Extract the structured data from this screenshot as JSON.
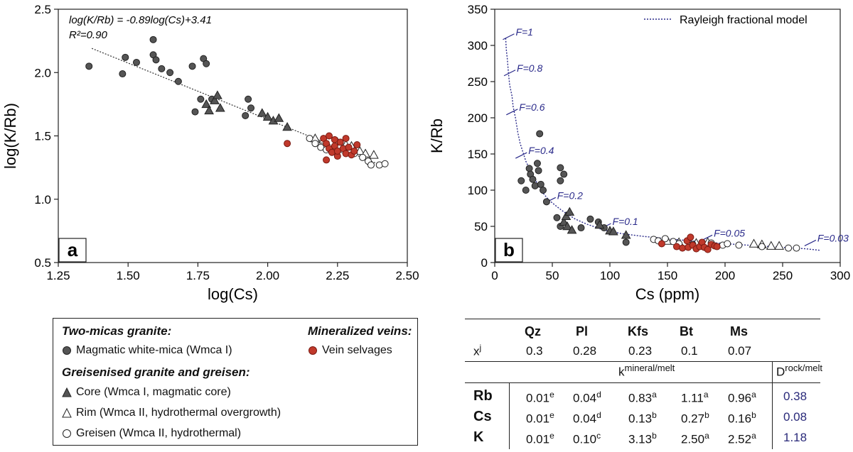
{
  "chart_data": [
    {
      "type": "scatter",
      "panel_label": "a",
      "xlabel": "log(Cs)",
      "ylabel": "log(K/Rb)",
      "xlim": [
        1.25,
        2.5
      ],
      "ylim": [
        0.5,
        2.5
      ],
      "xticks": [
        "1.25",
        "1.50",
        "1.75",
        "2.00",
        "2.25",
        "2.50"
      ],
      "yticks": [
        "0.5",
        "1.0",
        "1.5",
        "2.0",
        "2.5"
      ],
      "equation": "log(K/Rb) = -0.89log(Cs)+3.41",
      "r2_label": "R²=0.90",
      "trendline": {
        "slope": -0.89,
        "intercept": 3.41,
        "x_range": [
          1.37,
          2.4
        ]
      },
      "series": [
        {
          "name": "Magmatic white-mica (Wmca I)",
          "marker": "circle",
          "color": "#555555",
          "points": [
            [
              1.36,
              2.05
            ],
            [
              1.48,
              1.99
            ],
            [
              1.49,
              2.12
            ],
            [
              1.53,
              2.08
            ],
            [
              1.59,
              2.26
            ],
            [
              1.59,
              2.14
            ],
            [
              1.6,
              2.1
            ],
            [
              1.62,
              2.03
            ],
            [
              1.65,
              2.0
            ],
            [
              1.68,
              1.93
            ],
            [
              1.73,
              2.05
            ],
            [
              1.77,
              2.11
            ],
            [
              1.78,
              2.07
            ],
            [
              1.74,
              1.69
            ],
            [
              1.76,
              1.79
            ],
            [
              1.8,
              1.79
            ],
            [
              1.93,
              1.79
            ],
            [
              1.94,
              1.72
            ],
            [
              1.92,
              1.66
            ]
          ]
        },
        {
          "name": "Core (Wmca I, magmatic core)",
          "marker": "triangle",
          "color": "#555555",
          "points": [
            [
              1.78,
              1.75
            ],
            [
              1.79,
              1.7
            ],
            [
              1.81,
              1.78
            ],
            [
              1.82,
              1.82
            ],
            [
              1.83,
              1.72
            ],
            [
              1.98,
              1.68
            ],
            [
              2.0,
              1.65
            ],
            [
              2.02,
              1.62
            ],
            [
              2.04,
              1.64
            ],
            [
              2.07,
              1.57
            ]
          ]
        },
        {
          "name": "Rim (Wmca II, hydrothermal overgrowth)",
          "marker": "triangle-open",
          "color": "#ffffff",
          "points": [
            [
              2.17,
              1.48
            ],
            [
              2.2,
              1.47
            ],
            [
              2.25,
              1.45
            ],
            [
              2.28,
              1.43
            ],
            [
              2.3,
              1.42
            ],
            [
              2.33,
              1.38
            ],
            [
              2.35,
              1.36
            ],
            [
              2.38,
              1.35
            ]
          ]
        },
        {
          "name": "Greisen (Wmca II, hydrothermal)",
          "marker": "circle-open",
          "color": "#ffffff",
          "points": [
            [
              2.15,
              1.48
            ],
            [
              2.17,
              1.44
            ],
            [
              2.19,
              1.41
            ],
            [
              2.21,
              1.39
            ],
            [
              2.26,
              1.41
            ],
            [
              2.27,
              1.39
            ],
            [
              2.29,
              1.37
            ],
            [
              2.31,
              1.36
            ],
            [
              2.34,
              1.33
            ],
            [
              2.36,
              1.3
            ],
            [
              2.37,
              1.27
            ],
            [
              2.4,
              1.27
            ],
            [
              2.42,
              1.28
            ]
          ]
        },
        {
          "name": "Vein selvages",
          "marker": "circle",
          "color": "#c0392b",
          "points": [
            [
              2.07,
              1.44
            ],
            [
              2.2,
              1.48
            ],
            [
              2.21,
              1.44
            ],
            [
              2.22,
              1.5
            ],
            [
              2.22,
              1.4
            ],
            [
              2.23,
              1.37
            ],
            [
              2.24,
              1.47
            ],
            [
              2.24,
              1.42
            ],
            [
              2.25,
              1.34
            ],
            [
              2.26,
              1.45
            ],
            [
              2.27,
              1.4
            ],
            [
              2.28,
              1.36
            ],
            [
              2.28,
              1.48
            ],
            [
              2.29,
              1.41
            ],
            [
              2.3,
              1.35
            ],
            [
              2.31,
              1.38
            ],
            [
              2.32,
              1.43
            ],
            [
              2.21,
              1.31
            ],
            [
              2.25,
              1.38
            ]
          ]
        }
      ]
    },
    {
      "type": "scatter",
      "panel_label": "b",
      "xlabel": "Cs (ppm)",
      "ylabel": "K/Rb",
      "xlim": [
        0,
        300
      ],
      "ylim": [
        0,
        350
      ],
      "xticks": [
        "0",
        "50",
        "100",
        "150",
        "200",
        "250",
        "300"
      ],
      "yticks": [
        "0",
        "50",
        "100",
        "150",
        "200",
        "250",
        "300",
        "350"
      ],
      "model_legend": "Rayleigh fractional model",
      "model_curve": [
        [
          9.5,
          310
        ],
        [
          10,
          295
        ],
        [
          11,
          280
        ],
        [
          12,
          260
        ],
        [
          13,
          245
        ],
        [
          15,
          230
        ],
        [
          16,
          215
        ],
        [
          18,
          200
        ],
        [
          20,
          180
        ],
        [
          22,
          165
        ],
        [
          25,
          150
        ],
        [
          27,
          140
        ],
        [
          30,
          130
        ],
        [
          35,
          115
        ],
        [
          40,
          100
        ],
        [
          45,
          90
        ],
        [
          48,
          85
        ],
        [
          55,
          76
        ],
        [
          60,
          70
        ],
        [
          70,
          60
        ],
        [
          80,
          53
        ],
        [
          95,
          45
        ],
        [
          110,
          40
        ],
        [
          130,
          36
        ],
        [
          150,
          33
        ],
        [
          170,
          30
        ],
        [
          185,
          28
        ],
        [
          210,
          25
        ],
        [
          240,
          22
        ],
        [
          270,
          19
        ],
        [
          282,
          17
        ]
      ],
      "f_labels": [
        {
          "text": "F=1",
          "x": 12,
          "y": 312
        },
        {
          "text": "F=0.8",
          "x": 13,
          "y": 262
        },
        {
          "text": "F=0.6",
          "x": 15,
          "y": 208
        },
        {
          "text": "F=0.4",
          "x": 23,
          "y": 148
        },
        {
          "text": "F=0.2",
          "x": 48,
          "y": 86
        },
        {
          "text": "F=0.1",
          "x": 96,
          "y": 50
        },
        {
          "text": "F=0.05",
          "x": 184,
          "y": 34
        },
        {
          "text": "F=0.03",
          "x": 274,
          "y": 27
        }
      ],
      "series": [
        {
          "name": "Magmatic white-mica (Wmca I)",
          "marker": "circle",
          "color": "#555555",
          "points": [
            [
              23,
              113
            ],
            [
              27,
              100
            ],
            [
              30,
              130
            ],
            [
              31,
              122
            ],
            [
              33,
              115
            ],
            [
              35,
              106
            ],
            [
              37,
              137
            ],
            [
              38,
              127
            ],
            [
              39,
              178
            ],
            [
              40,
              108
            ],
            [
              42,
              100
            ],
            [
              45,
              84
            ],
            [
              57,
              131
            ],
            [
              60,
              122
            ],
            [
              57,
              113
            ],
            [
              54,
              62
            ],
            [
              57,
              50
            ],
            [
              75,
              48
            ],
            [
              83,
              60
            ],
            [
              90,
              56
            ],
            [
              95,
              48
            ],
            [
              114,
              28
            ]
          ]
        },
        {
          "name": "Core (Wmca I, magmatic core)",
          "marker": "triangle",
          "color": "#555555",
          "points": [
            [
              60,
              56
            ],
            [
              62,
              64
            ],
            [
              63,
              50
            ],
            [
              65,
              70
            ],
            [
              67,
              45
            ],
            [
              91,
              52
            ],
            [
              100,
              44
            ],
            [
              103,
              43
            ],
            [
              114,
              38
            ]
          ]
        },
        {
          "name": "Rim (Wmca II, hydrothermal overgrowth)",
          "marker": "triangle-open",
          "color": "#ffffff",
          "points": [
            [
              150,
              30
            ],
            [
              160,
              28
            ],
            [
              175,
              27
            ],
            [
              185,
              28
            ],
            [
              225,
              26
            ],
            [
              232,
              25
            ],
            [
              240,
              23
            ],
            [
              247,
              23
            ]
          ]
        },
        {
          "name": "Greisen (Wmca II, hydrothermal)",
          "marker": "circle-open",
          "color": "#ffffff",
          "points": [
            [
              138,
              32
            ],
            [
              142,
              30
            ],
            [
              148,
              33
            ],
            [
              155,
              29
            ],
            [
              160,
              26
            ],
            [
              172,
              25
            ],
            [
              188,
              27
            ],
            [
              198,
              24
            ],
            [
              202,
              26
            ],
            [
              212,
              24
            ],
            [
              232,
              22
            ],
            [
              255,
              20
            ],
            [
              262,
              20
            ]
          ]
        },
        {
          "name": "Vein selvages",
          "marker": "circle",
          "color": "#c0392b",
          "points": [
            [
              145,
              26
            ],
            [
              158,
              22
            ],
            [
              163,
              20
            ],
            [
              167,
              30
            ],
            [
              168,
              21
            ],
            [
              170,
              35
            ],
            [
              172,
              24
            ],
            [
              175,
              19
            ],
            [
              178,
              22
            ],
            [
              180,
              28
            ],
            [
              182,
              21
            ],
            [
              185,
              18
            ],
            [
              188,
              25
            ],
            [
              191,
              23
            ],
            [
              193,
              22
            ]
          ]
        }
      ]
    }
  ],
  "legend": {
    "two_micas_title": "Two-micas granite:",
    "magmatic_label": "Magmatic white-mica (Wmca I)",
    "greisen_title": "Greisenised granite and greisen:",
    "core_label": "Core (Wmca I, magmatic core)",
    "rim_label": "Rim (Wmca II, hydrothermal overgrowth)",
    "greisen_label": "Greisen (Wmca II, hydrothermal)",
    "veins_title": "Mineralized veins:",
    "vein_label": "Vein selvages"
  },
  "table": {
    "minerals": [
      "Qz",
      "Pl",
      "Kfs",
      "Bt",
      "Ms"
    ],
    "xj_label": "x",
    "xj_sup": "j",
    "xj_values": [
      "0.3",
      "0.28",
      "0.23",
      "0.1",
      "0.07"
    ],
    "k_label": "k",
    "k_sup": "mineral/melt",
    "d_label": "D",
    "d_sup": "rock/melt",
    "rows": [
      {
        "element": "Rb",
        "values": [
          [
            "0.01",
            "e"
          ],
          [
            "0.04",
            "d"
          ],
          [
            "0.83",
            "a"
          ],
          [
            "1.11",
            "a"
          ],
          [
            "0.96",
            "a"
          ]
        ],
        "D": "0.38"
      },
      {
        "element": "Cs",
        "values": [
          [
            "0.01",
            "e"
          ],
          [
            "0.04",
            "d"
          ],
          [
            "0.13",
            "b"
          ],
          [
            "0.27",
            "b"
          ],
          [
            "0.16",
            "b"
          ]
        ],
        "D": "0.08"
      },
      {
        "element": "K",
        "values": [
          [
            "0.01",
            "e"
          ],
          [
            "0.10",
            "c"
          ],
          [
            "3.13",
            "b"
          ],
          [
            "2.50",
            "a"
          ],
          [
            "2.52",
            "a"
          ]
        ],
        "D": "1.18"
      }
    ]
  }
}
